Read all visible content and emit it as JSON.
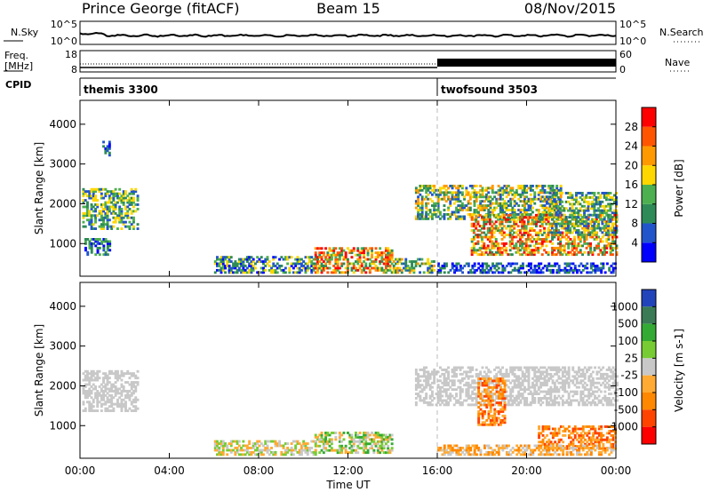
{
  "header": {
    "station": "Prince George (fitACF)",
    "beam": "Beam 15",
    "date": "08/Nov/2015"
  },
  "top_panels": {
    "nsky_label": "N.Sky",
    "nsky_ticks": [
      "10^5",
      "10^0"
    ],
    "nsearch_label": "N.Search",
    "nsearch_ticks": [
      "10^5",
      "10^0"
    ],
    "freq_label_1": "Freq.",
    "freq_label_2": "[MHz]",
    "freq_ticks": [
      "18",
      "8"
    ],
    "nave_label": "Nave",
    "nave_ticks": [
      "60",
      "0"
    ],
    "cpid_label": "CPID",
    "cpid_segments": [
      {
        "name": "themis 3300",
        "start_hour": 0
      },
      {
        "name": "twofsound 3503",
        "start_hour": 16
      }
    ]
  },
  "chart_data": [
    {
      "type": "heatmap",
      "name": "power",
      "ylabel": "Slant Range [km]",
      "ylim": [
        180,
        4600
      ],
      "yticks": [
        1000,
        2000,
        3000,
        4000
      ],
      "colorbar_label": "Power [dB]",
      "colorbar_ticks": [
        "4",
        "8",
        "12",
        "16",
        "20",
        "24",
        "28"
      ],
      "colors": [
        "#0000ff",
        "#2255cc",
        "#2e8b57",
        "#4caf50",
        "#ffd700",
        "#ff9900",
        "#ff5500",
        "#ff0000"
      ],
      "regions": [
        {
          "t": [
            0.1,
            2.6
          ],
          "r": [
            1350,
            2350
          ],
          "level": [
            1,
            4
          ]
        },
        {
          "t": [
            1.0,
            1.3
          ],
          "r": [
            3200,
            3550
          ],
          "level": [
            0,
            2
          ]
        },
        {
          "t": [
            0.2,
            1.3
          ],
          "r": [
            700,
            1100
          ],
          "level": [
            0,
            3
          ]
        },
        {
          "t": [
            6.0,
            10.5
          ],
          "r": [
            250,
            650
          ],
          "level": [
            0,
            4
          ]
        },
        {
          "t": [
            10.5,
            14.0
          ],
          "r": [
            250,
            900
          ],
          "level": [
            2,
            7
          ]
        },
        {
          "t": [
            14.0,
            15.8
          ],
          "r": [
            250,
            600
          ],
          "level": [
            1,
            5
          ]
        },
        {
          "t": [
            15.0,
            21.5
          ],
          "r": [
            1600,
            2450
          ],
          "level": [
            1,
            5
          ]
        },
        {
          "t": [
            17.5,
            24.0
          ],
          "r": [
            700,
            1700
          ],
          "level": [
            2,
            7
          ]
        },
        {
          "t": [
            21.0,
            24.0
          ],
          "r": [
            1200,
            2300
          ],
          "level": [
            1,
            4
          ]
        },
        {
          "t": [
            16.0,
            24.0
          ],
          "r": [
            250,
            500
          ],
          "level": [
            0,
            2
          ]
        }
      ]
    },
    {
      "type": "heatmap",
      "name": "velocity",
      "ylabel": "Slant Range [km]",
      "ylim": [
        180,
        4600
      ],
      "yticks": [
        1000,
        2000,
        3000,
        4000
      ],
      "colorbar_label": "Velocity [m s-1]",
      "colorbar_ticks": [
        "1000",
        "500",
        "100",
        "25",
        "-25",
        "-100",
        "-500",
        "-1000"
      ],
      "colors": [
        "#2244bb",
        "#3a7a55",
        "#33aa33",
        "#77cc33",
        "#c8c8c8",
        "#ffaa33",
        "#ff8800",
        "#ff4400",
        "#ff0000"
      ],
      "regions": [
        {
          "t": [
            0.1,
            2.6
          ],
          "r": [
            1350,
            2350
          ],
          "level": [
            4,
            4
          ]
        },
        {
          "t": [
            10.5,
            14.0
          ],
          "r": [
            300,
            850
          ],
          "level": [
            2,
            5
          ]
        },
        {
          "t": [
            6.0,
            10.5
          ],
          "r": [
            250,
            600
          ],
          "level": [
            3,
            5
          ]
        },
        {
          "t": [
            15.0,
            24.0
          ],
          "r": [
            1500,
            2450
          ],
          "level": [
            4,
            4
          ]
        },
        {
          "t": [
            17.8,
            19.0
          ],
          "r": [
            1000,
            2200
          ],
          "level": [
            5,
            7
          ]
        },
        {
          "t": [
            20.5,
            24.0
          ],
          "r": [
            400,
            1000
          ],
          "level": [
            5,
            7
          ]
        },
        {
          "t": [
            16.0,
            24.0
          ],
          "r": [
            250,
            500
          ],
          "level": [
            4,
            6
          ]
        }
      ]
    }
  ],
  "x_axis": {
    "label": "Time UT",
    "ticks": [
      "00:00",
      "04:00",
      "08:00",
      "12:00",
      "16:00",
      "20:00",
      "00:00"
    ]
  }
}
